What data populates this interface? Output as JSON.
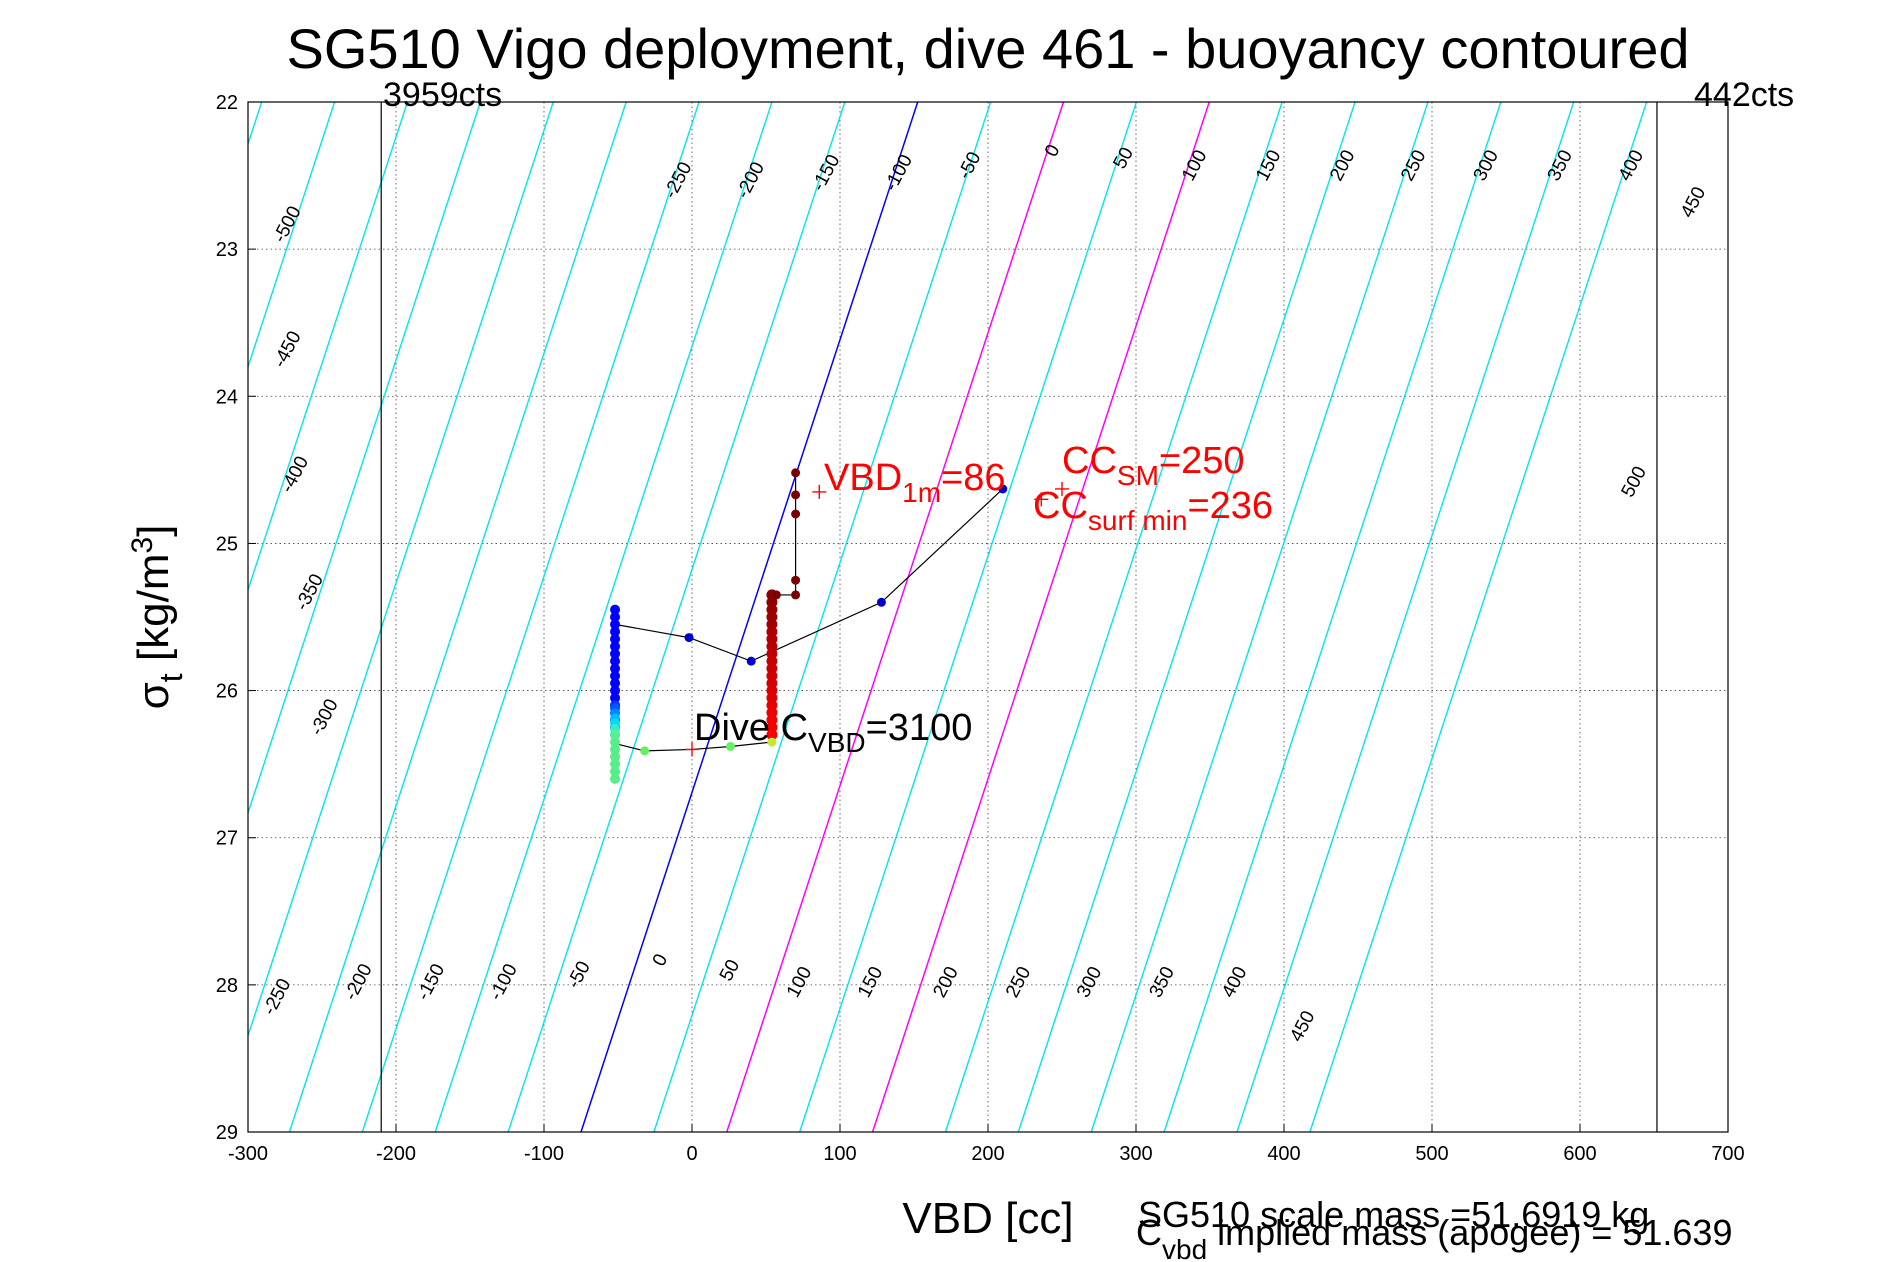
{
  "chart_data": {
    "type": "scatter",
    "title": "SG510 Vigo deployment, dive 461 - buoyancy contoured",
    "xlabel": "VBD [cc]",
    "ylabel_main": "σ",
    "ylabel_sub": "t",
    "ylabel_unit_pre": " [kg/m",
    "ylabel_unit_sup": "3",
    "ylabel_unit_post": "]",
    "xlim": [
      -300,
      700
    ],
    "ylim": [
      22,
      29
    ],
    "y_reversed": true,
    "xticks": [
      -300,
      -200,
      -100,
      0,
      100,
      200,
      300,
      400,
      500,
      600,
      700
    ],
    "yticks": [
      22,
      23,
      24,
      25,
      26,
      27,
      28,
      29
    ],
    "grid": true,
    "limit_lines": [
      {
        "x": -210,
        "label": "3959cts"
      },
      {
        "x": 652,
        "label": "442cts"
      }
    ],
    "buoyancy_contours": {
      "levels": [
        -500,
        -450,
        -400,
        -350,
        -300,
        -250,
        -200,
        -150,
        -100,
        -50,
        0,
        50,
        100,
        150,
        200,
        250,
        300,
        350,
        400,
        450,
        500
      ],
      "highlight_blue": [
        0
      ],
      "highlight_magenta": [
        100,
        200
      ],
      "cyan_color": "#00e5ee",
      "blue_color": "#0000ff",
      "magenta_color": "#ff00ff",
      "top_labels": [
        {
          "value": -500,
          "x": -270,
          "y": 22.85
        },
        {
          "value": -450,
          "x": -270,
          "y": 23.7
        },
        {
          "value": -400,
          "x": -265,
          "y": 24.55
        },
        {
          "value": -350,
          "x": -255,
          "y": 25.35
        },
        {
          "value": -300,
          "x": -245,
          "y": 26.2
        },
        {
          "value": -250,
          "x": -6,
          "y": 22.55
        },
        {
          "value": -200,
          "x": 43,
          "y": 22.55
        },
        {
          "value": -150,
          "x": 94,
          "y": 22.5
        },
        {
          "value": -100,
          "x": 143,
          "y": 22.5
        },
        {
          "value": -50,
          "x": 191,
          "y": 22.45
        },
        {
          "value": 0,
          "x": 247,
          "y": 22.35
        },
        {
          "value": 50,
          "x": 295,
          "y": 22.4
        },
        {
          "value": 100,
          "x": 343,
          "y": 22.45
        },
        {
          "value": 150,
          "x": 393,
          "y": 22.45
        },
        {
          "value": 200,
          "x": 443,
          "y": 22.45
        },
        {
          "value": 250,
          "x": 491,
          "y": 22.45
        },
        {
          "value": 300,
          "x": 540,
          "y": 22.45
        },
        {
          "value": 350,
          "x": 590,
          "y": 22.45
        },
        {
          "value": 400,
          "x": 638,
          "y": 22.45
        },
        {
          "value": 450,
          "x": 680,
          "y": 22.7
        },
        {
          "value": 500,
          "x": 640,
          "y": 24.6
        }
      ],
      "bottom_labels": [
        {
          "value": -250,
          "x": -277,
          "y": 28.1
        },
        {
          "value": -200,
          "x": -222,
          "y": 28.0
        },
        {
          "value": -150,
          "x": -173,
          "y": 28.0
        },
        {
          "value": -100,
          "x": -124,
          "y": 28.0
        },
        {
          "value": -50,
          "x": -73,
          "y": 27.95
        },
        {
          "value": 0,
          "x": -18,
          "y": 27.85
        },
        {
          "value": 50,
          "x": 29,
          "y": 27.92
        },
        {
          "value": 100,
          "x": 76,
          "y": 28.0
        },
        {
          "value": 150,
          "x": 124,
          "y": 28.0
        },
        {
          "value": 200,
          "x": 175,
          "y": 28.0
        },
        {
          "value": 250,
          "x": 224,
          "y": 28.0
        },
        {
          "value": 300,
          "x": 272,
          "y": 28.0
        },
        {
          "value": 350,
          "x": 321,
          "y": 28.0
        },
        {
          "value": 400,
          "x": 370,
          "y": 28.0
        },
        {
          "value": 450,
          "x": 416,
          "y": 28.3
        }
      ]
    },
    "dive_path": {
      "color": "#000000",
      "points": [
        {
          "x": -52,
          "y": 25.55
        },
        {
          "x": -2,
          "y": 25.64
        },
        {
          "x": 40,
          "y": 25.8
        },
        {
          "x": 128,
          "y": 25.4
        },
        {
          "x": 210,
          "y": 24.63
        }
      ]
    },
    "climb_path": {
      "color": "#000000",
      "points": [
        {
          "x": -52,
          "y": 26.36
        },
        {
          "x": -32,
          "y": 26.41
        },
        {
          "x": 0,
          "y": 26.4
        },
        {
          "x": 26,
          "y": 26.38
        },
        {
          "x": 54,
          "y": 26.35
        }
      ]
    },
    "red_column_path": {
      "points": [
        {
          "x": 54,
          "y": 26.35
        },
        {
          "x": 54,
          "y": 25.72
        },
        {
          "x": 57,
          "y": 25.35
        },
        {
          "x": 70,
          "y": 25.35
        },
        {
          "x": 70,
          "y": 24.52
        }
      ]
    },
    "series": [
      {
        "name_hidden": "blue_col",
        "color": "#0000ff",
        "x": -52,
        "y_from": 25.45,
        "y_to": 26.1,
        "step": 0.05
      },
      {
        "name_hidden": "blue_col_light",
        "color": "#0033ff",
        "x": -52,
        "y_from": 26.1,
        "y_to": 26.3,
        "step": 0.05
      },
      {
        "name_hidden": "green_col",
        "color": "#55ee88",
        "x": -52,
        "y_from": 26.3,
        "y_to": 26.6,
        "step": 0.05
      }
    ],
    "scatter_points": [
      {
        "x": -2,
        "y": 25.64,
        "color": "#0000cc"
      },
      {
        "x": 40,
        "y": 25.8,
        "color": "#0000cc"
      },
      {
        "x": 128,
        "y": 25.4,
        "color": "#0000cc"
      },
      {
        "x": 210,
        "y": 24.63,
        "color": "#0000cc"
      },
      {
        "x": -32,
        "y": 26.41,
        "color": "#66ee66"
      },
      {
        "x": 26,
        "y": 26.38,
        "color": "#66ee66"
      },
      {
        "x": 54,
        "y": 26.35,
        "color": "#bbee33"
      },
      {
        "x": 70,
        "y": 24.52,
        "color": "#7a0000"
      },
      {
        "x": 70,
        "y": 24.67,
        "color": "#7a0000"
      },
      {
        "x": 70,
        "y": 24.8,
        "color": "#7a0000"
      },
      {
        "x": 70,
        "y": 25.25,
        "color": "#7a0000"
      },
      {
        "x": 70,
        "y": 25.35,
        "color": "#7a0000"
      },
      {
        "x": 57,
        "y": 25.35,
        "color": "#7a0000"
      }
    ],
    "red_column": {
      "x": 54,
      "y_from": 25.35,
      "y_to": 26.3,
      "step": 0.05,
      "color_top": "#8b0000",
      "color_bottom": "#ff0000"
    },
    "markers": [
      {
        "x": 86,
        "y": 24.65,
        "color": "#ff0000"
      },
      {
        "x": 250,
        "y": 24.63,
        "color": "#ff0000"
      },
      {
        "x": 236,
        "y": 24.7,
        "color": "#ff0000"
      },
      {
        "x": 0,
        "y": 26.4,
        "color": "#ff0000"
      }
    ],
    "annotations": {
      "vbd1m": {
        "main": "VBD",
        "sub": "1m",
        "post": "=86"
      },
      "ccsm": {
        "main": "CC",
        "sub": "SM",
        "post": "=250"
      },
      "ccsurf": {
        "main": "CC",
        "sub": "surf min",
        "post": "=236"
      },
      "divec": {
        "main": "Dive C",
        "sub": "VBD",
        "post": "=3100"
      }
    },
    "notes": {
      "scale_mass": "SG510 scale mass =51.6919 kg",
      "implied_main": "C",
      "implied_sub": "vbd",
      "implied_post": " implied mass (apogee) = 51.639"
    }
  }
}
